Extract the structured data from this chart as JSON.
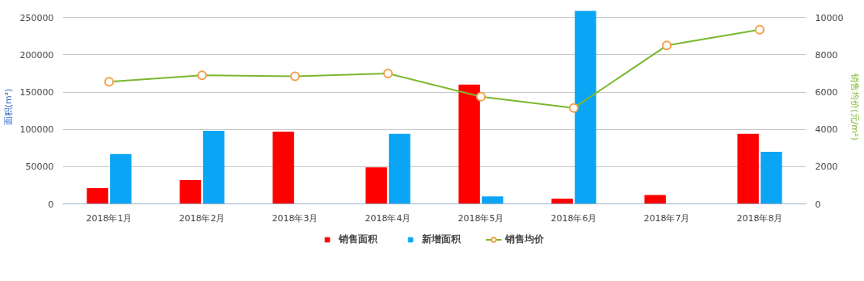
{
  "chart_data": {
    "type": "bar",
    "categories": [
      "2018年1月",
      "2018年2月",
      "2018年3月",
      "2018年4月",
      "2018年5月",
      "2018年6月",
      "2018年7月",
      "2018年8月"
    ],
    "ylabel": "面积(m²)",
    "y2label": "销售均价(元/m²)",
    "ylim": [
      0,
      260000
    ],
    "yticks": [
      0,
      50000,
      100000,
      150000,
      200000,
      250000
    ],
    "y2lim": [
      0,
      10400
    ],
    "y2ticks": [
      0,
      2000,
      4000,
      6000,
      8000,
      10000
    ],
    "grid": "y",
    "legend": "bottom",
    "series": [
      {
        "name": "销售面积",
        "color": "#ff0000",
        "values": [
          21000,
          32000,
          97000,
          49000,
          160000,
          7000,
          12000,
          94000
        ]
      },
      {
        "name": "新增面积",
        "color": "#0aa5f5",
        "values": [
          67000,
          98000,
          null,
          94000,
          10000,
          259000,
          null,
          70000
        ]
      },
      {
        "name": "销售均价",
        "type": "line",
        "axis": "y2",
        "color": "#7cb82f",
        "marker": "circle",
        "values": [
          6550,
          6900,
          6850,
          7000,
          5750,
          5150,
          8500,
          9350
        ]
      }
    ]
  }
}
